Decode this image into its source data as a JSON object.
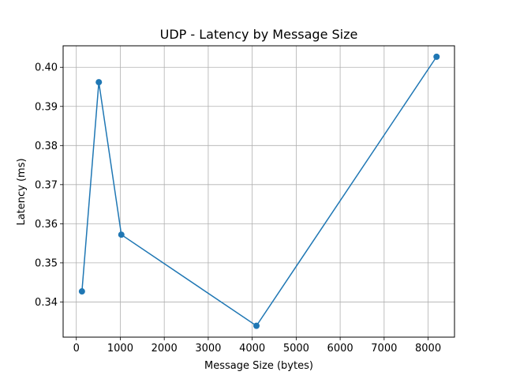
{
  "chart_data": {
    "type": "line",
    "title": "UDP - Latency by Message Size",
    "xlabel": "Message Size (bytes)",
    "ylabel": "Latency (ms)",
    "xlim": [
      -300,
      8600
    ],
    "ylim": [
      0.331,
      0.4055
    ],
    "xticks": [
      0,
      1000,
      2000,
      3000,
      4000,
      5000,
      6000,
      7000,
      8000
    ],
    "yticks": [
      0.34,
      0.35,
      0.36,
      0.37,
      0.38,
      0.39,
      0.4
    ],
    "ytick_labels": [
      "0.34",
      "0.35",
      "0.36",
      "0.37",
      "0.38",
      "0.39",
      "0.40"
    ],
    "grid": true,
    "line_color": "#1f77b4",
    "series": [
      {
        "x": [
          128,
          512,
          1024,
          4096,
          8192
        ],
        "y": [
          0.3427,
          0.3962,
          0.3572,
          0.3339,
          0.4027
        ]
      }
    ]
  }
}
